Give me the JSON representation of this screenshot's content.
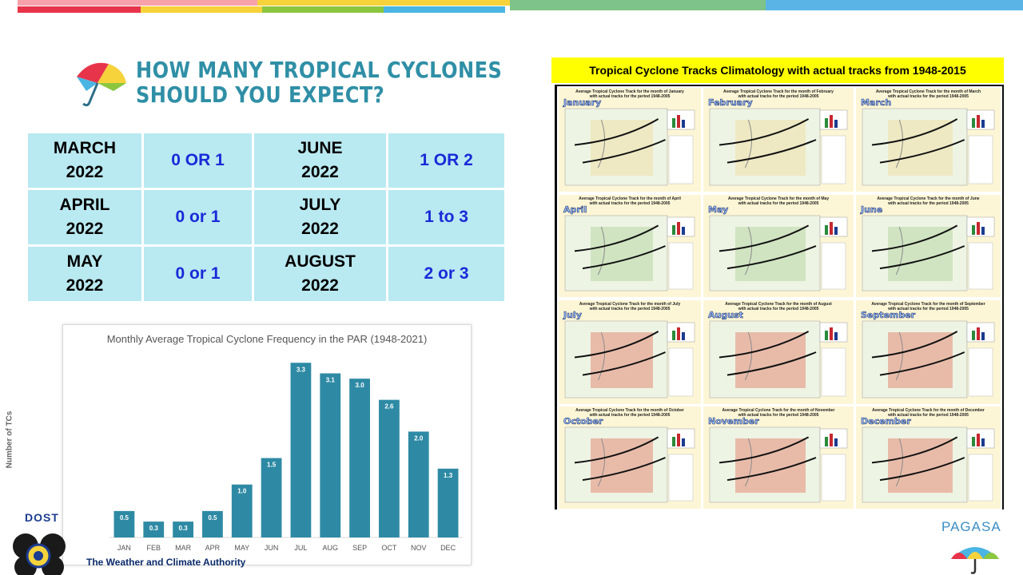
{
  "header": {
    "title_line1": "HOW MANY TROPICAL CYCLONES",
    "title_line2": "SHOULD YOU EXPECT?"
  },
  "forecast_table": {
    "rows": [
      {
        "m1_line1": "MARCH",
        "m1_line2": "2022",
        "v1": "0 OR 1",
        "m2_line1": "JUNE",
        "m2_line2": "2022",
        "v2": "1 OR 2"
      },
      {
        "m1_line1": "APRIL",
        "m1_line2": "2022",
        "v1": "0 or 1",
        "m2_line1": "JULY",
        "m2_line2": "2022",
        "v2": "1 to 3"
      },
      {
        "m1_line1": "MAY",
        "m1_line2": "2022",
        "v1": "0 or 1",
        "m2_line1": "AUGUST",
        "m2_line2": "2022",
        "v2": "2 or 3"
      }
    ]
  },
  "chart_data": {
    "type": "bar",
    "title": "Monthly Average Tropical Cyclone Frequency in the PAR (1948-2021)",
    "ylabel": "Number of TCs",
    "xlabel": "",
    "categories": [
      "JAN",
      "FEB",
      "MAR",
      "APR",
      "MAY",
      "JUN",
      "JUL",
      "AUG",
      "SEP",
      "OCT",
      "NOV",
      "DEC"
    ],
    "values": [
      0.5,
      0.3,
      0.3,
      0.5,
      1.0,
      1.5,
      3.3,
      3.1,
      3.0,
      2.6,
      2.0,
      1.3
    ],
    "data_labels": [
      "0.5",
      "0.3",
      "0.3",
      "0.5",
      "1.0",
      "1.5",
      "3.3",
      "3.1",
      "3.0",
      "2.6",
      "2.0",
      "1.3"
    ],
    "ylim": [
      0,
      3.5
    ],
    "grid": false,
    "bar_color": "#2e8aa4"
  },
  "climatology": {
    "banner": "Tropical Cyclone Tracks Climatology with actual tracks from 1948-2015",
    "panels": [
      {
        "title_line1": "Average Tropical Cyclone Track for the month of January",
        "title_line2": "with actual tracks for the period 1948-2005",
        "month": "January"
      },
      {
        "title_line1": "Average Tropical Cyclone Track for the month of February",
        "title_line2": "with actual tracks for the period 1948-2005",
        "month": "February"
      },
      {
        "title_line1": "Average Tropical Cyclone Track for the month of March",
        "title_line2": "with actual tracks for the period 1948-2005",
        "month": "March"
      },
      {
        "title_line1": "Average Tropical Cyclone Track for the month of April",
        "title_line2": "with actual tracks for the period 1948-2005",
        "month": "April"
      },
      {
        "title_line1": "Average Tropical Cyclone Track for the month of May",
        "title_line2": "with actual tracks for the period 1948-2005",
        "month": "May"
      },
      {
        "title_line1": "Average Tropical Cyclone Track for the month of June",
        "title_line2": "with actual tracks for the period 1948-2005",
        "month": "June"
      },
      {
        "title_line1": "Average Tropical Cyclone Track for the month of July",
        "title_line2": "with actual tracks for the period 1948-2005",
        "month": "July"
      },
      {
        "title_line1": "Average Tropical Cyclone Track for the month of August",
        "title_line2": "with actual tracks for the period 1948-2005",
        "month": "August"
      },
      {
        "title_line1": "Average Tropical Cyclone Track for the month of September",
        "title_line2": "with actual tracks for the period 1948-2005",
        "month": "September"
      },
      {
        "title_line1": "Average Tropical Cyclone Track for the month of October",
        "title_line2": "with actual tracks for the period 1948-2005",
        "month": "October"
      },
      {
        "title_line1": "Average Tropical Cyclone Track for the month of November",
        "title_line2": "with actual tracks for the period 1948-2005",
        "month": "November"
      },
      {
        "title_line1": "Average Tropical Cyclone Track for the month of December",
        "title_line2": "with actual tracks for the period 1948-2005",
        "month": "December"
      }
    ]
  },
  "footer": {
    "dost": "DOST",
    "tagline": "The Weather and Climate Authority",
    "pagasa": "PAGASA"
  },
  "colors": {
    "heading": "#2f8fa6",
    "table_cell": "#b9e9f1",
    "value_text": "#1a2ad8",
    "banner": "#ffff00",
    "top_stripes": [
      "#e8344a",
      "#f6d23b",
      "#8cc63f",
      "#4ab5e3",
      "#7ec389",
      "#5ab4e5"
    ]
  }
}
